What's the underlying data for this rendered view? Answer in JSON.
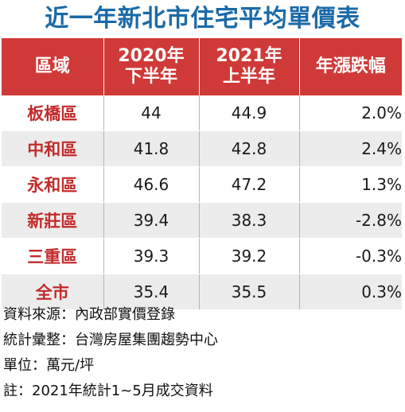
{
  "title": "近一年新北市住宅平均單價表",
  "table": {
    "headers": {
      "region": "區域",
      "h2020_line1": "2020年",
      "h2020_line2": "下半年",
      "h2021_line1": "2021年",
      "h2021_line2": "上半年",
      "change": "年漲跌幅"
    },
    "rows": [
      {
        "region": "板橋區",
        "v2020": "44",
        "v2021": "44.9",
        "change": "2.0%"
      },
      {
        "region": "中和區",
        "v2020": "41.8",
        "v2021": "42.8",
        "change": "2.4%"
      },
      {
        "region": "永和區",
        "v2020": "46.6",
        "v2021": "47.2",
        "change": "1.3%"
      },
      {
        "region": "新莊區",
        "v2020": "39.4",
        "v2021": "38.3",
        "change": "-2.8%"
      },
      {
        "region": "三重區",
        "v2020": "39.3",
        "v2021": "39.2",
        "change": "-0.3%"
      },
      {
        "region": "全市",
        "v2020": "35.4",
        "v2021": "35.5",
        "change": "0.3%"
      }
    ]
  },
  "notes": {
    "source": "資料來源：內政部實價登錄",
    "compiler": "統計彙整：台灣房屋集團趨勢中心",
    "unit": "單位：萬元/坪",
    "footnote": "註：2021年統計1~5月成交資料"
  },
  "colors": {
    "title": "#1a6aa8",
    "header_bg": "#cf3a38",
    "region_text": "#c22b2a",
    "stripe": "#ececec"
  }
}
